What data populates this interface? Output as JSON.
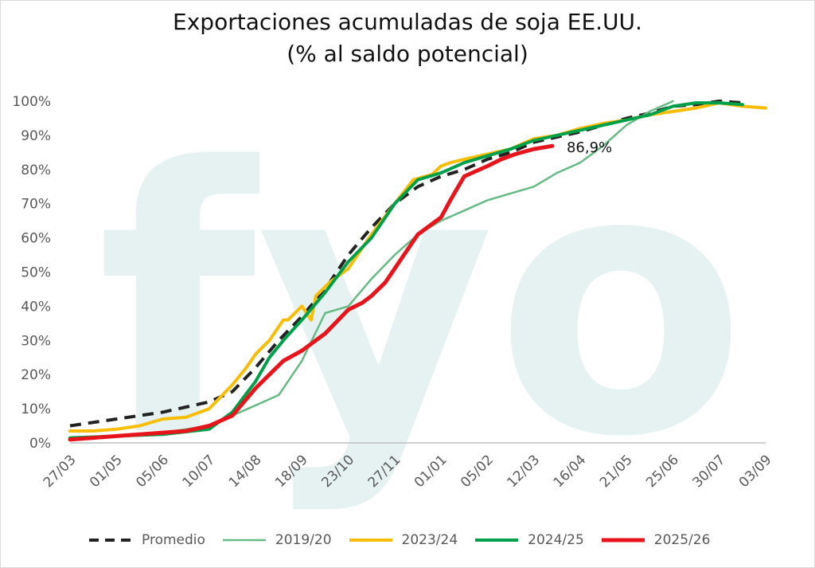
{
  "chart_data": {
    "type": "line",
    "title_line1": "Exportaciones acumuladas de soja EE.UU.",
    "title_line2": "(% al saldo potencial)",
    "watermark": "fyo",
    "x_ticks": [
      "27/03",
      "01/05",
      "05/06",
      "10/07",
      "14/08",
      "18/09",
      "23/10",
      "27/11",
      "01/01",
      "05/02",
      "12/03",
      "16/04",
      "21/05",
      "25/06",
      "30/07",
      "03/09"
    ],
    "x_range": [
      0,
      15
    ],
    "y_ticks": [
      "0%",
      "10%",
      "20%",
      "30%",
      "40%",
      "50%",
      "60%",
      "70%",
      "80%",
      "90%",
      "100%"
    ],
    "ylim": [
      0,
      100
    ],
    "annotation": {
      "text": "86,9%",
      "x": 10.4,
      "y": 86.9
    },
    "series": [
      {
        "name": "Promedio",
        "color": "#222222",
        "dash": true,
        "width": 4,
        "x": [
          0,
          1,
          2,
          3,
          3.5,
          4,
          4.5,
          5,
          5.5,
          6,
          6.5,
          7,
          7.5,
          8,
          8.5,
          9,
          9.5,
          10,
          10.5,
          11,
          11.5,
          12,
          12.5,
          13,
          13.5,
          14,
          14.5
        ],
        "y": [
          5,
          7,
          9,
          12,
          15,
          22,
          30,
          37,
          45,
          55,
          63,
          70,
          75,
          78,
          80,
          83,
          85,
          88,
          89.5,
          91,
          93,
          95,
          96.5,
          98.5,
          99,
          100,
          99.5
        ]
      },
      {
        "name": "2019/20",
        "color": "#66bb84",
        "dash": false,
        "width": 2.5,
        "x": [
          0,
          1,
          2,
          3,
          3.5,
          4,
          4.5,
          5,
          5.5,
          6,
          6.5,
          7,
          7.5,
          8,
          8.5,
          9,
          9.5,
          10,
          10.5,
          11,
          11.5,
          12,
          12.5,
          13
        ],
        "y": [
          1,
          2,
          3,
          5,
          8,
          11,
          14,
          24,
          38,
          40,
          48,
          55,
          61,
          65,
          68,
          71,
          73,
          75,
          79,
          82,
          87,
          93,
          97,
          100
        ]
      },
      {
        "name": "2023/24",
        "color": "#f7bd07",
        "dash": false,
        "width": 4,
        "x": [
          0,
          0.5,
          1,
          1.5,
          2,
          2.5,
          3,
          3.5,
          3.8,
          4,
          4.3,
          4.6,
          4.7,
          5,
          5.2,
          5.3,
          5.6,
          6,
          6.2,
          6.5,
          7,
          7.4,
          7.8,
          8,
          8.2,
          8.5,
          9,
          9.5,
          10,
          10.5,
          11,
          11.5,
          12,
          12.5,
          13,
          13.5,
          14,
          14.5,
          15
        ],
        "y": [
          3.5,
          3.5,
          4,
          5,
          7,
          7.5,
          10,
          17,
          22,
          26,
          30,
          36,
          36,
          40,
          36,
          43,
          47,
          51,
          55,
          61,
          70,
          77,
          78.5,
          81,
          82,
          83,
          84.5,
          86,
          89,
          90,
          92,
          93.5,
          94.5,
          96,
          97,
          98,
          99.5,
          98.5,
          98
        ]
      },
      {
        "name": "2024/25",
        "color": "#00a04a",
        "dash": false,
        "width": 4,
        "x": [
          0,
          1,
          2,
          3,
          3.5,
          4,
          4.3,
          4.6,
          5,
          5.5,
          6,
          6.5,
          7,
          7.5,
          8,
          8.5,
          9,
          9.5,
          10,
          10.5,
          11,
          11.5,
          12,
          12.5,
          13,
          13.5,
          14,
          14.5
        ],
        "y": [
          1.5,
          2,
          2.5,
          4,
          9,
          18,
          25,
          30,
          36,
          44,
          53,
          60,
          70,
          77,
          79,
          82,
          84,
          86,
          88.5,
          90,
          91.5,
          93,
          94.5,
          96,
          98.5,
          99.5,
          99.5,
          99
        ]
      },
      {
        "name": "2025/26",
        "color": "#e8141b",
        "dash": false,
        "width": 5,
        "x": [
          0,
          0.5,
          1,
          1.5,
          2,
          2.5,
          3,
          3.5,
          4,
          4.3,
          4.6,
          5,
          5.5,
          6,
          6.3,
          6.5,
          6.8,
          7,
          7.2,
          7.5,
          8,
          8.2,
          8.5,
          9,
          9.3,
          9.6,
          10,
          10.4
        ],
        "y": [
          1,
          1.5,
          2,
          2.5,
          3,
          3.5,
          5,
          8,
          16,
          20,
          24,
          27,
          32,
          39,
          41,
          43,
          47,
          51,
          55,
          61,
          66,
          71,
          78,
          81,
          83,
          84.5,
          86,
          86.9
        ]
      }
    ]
  }
}
